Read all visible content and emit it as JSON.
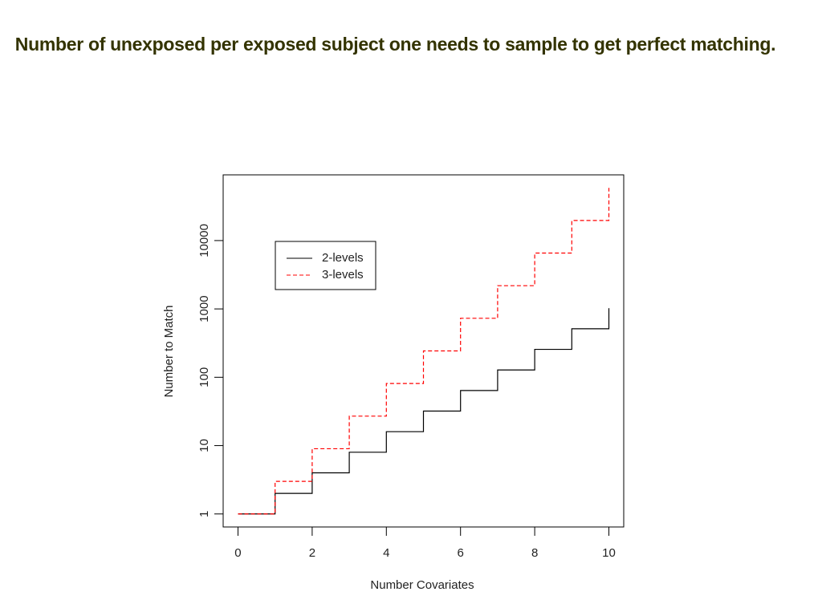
{
  "chart_data": {
    "type": "line",
    "step": true,
    "log_y": true,
    "title": "Number of unexposed per exposed subject one needs to sample to get perfect matching.",
    "x_label": "Number Covariates",
    "y_label": "Number to Match",
    "x": [
      0,
      1,
      2,
      3,
      4,
      5,
      6,
      7,
      8,
      9,
      10
    ],
    "series": [
      {
        "name": "2-levels",
        "color": "#000000",
        "dashed": false,
        "values": [
          1,
          2,
          4,
          8,
          16,
          32,
          64,
          128,
          256,
          512,
          1024
        ]
      },
      {
        "name": "3-levels",
        "color": "#ff0000",
        "dashed": true,
        "values": [
          1,
          3,
          9,
          27,
          81,
          243,
          729,
          2187,
          6561,
          19683,
          59049
        ]
      }
    ],
    "xlim": [
      -0.4,
      10.4
    ],
    "xticks": [
      0,
      2,
      4,
      6,
      8,
      10
    ],
    "ylim": [
      0.645,
      91500
    ],
    "yticks": [
      1,
      10,
      100,
      1000,
      10000
    ],
    "legend": "upper left"
  }
}
